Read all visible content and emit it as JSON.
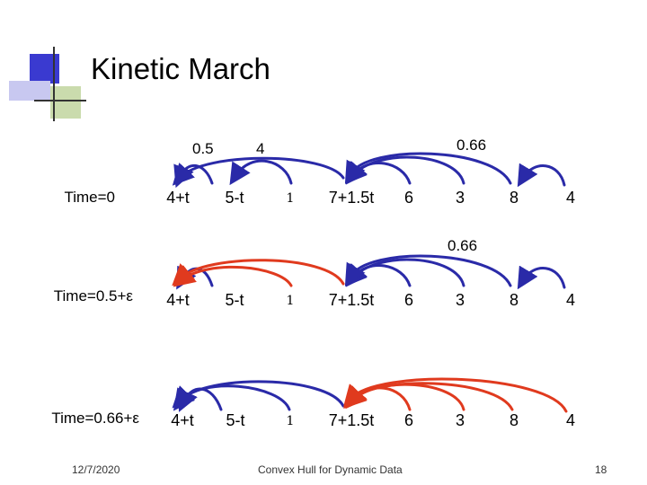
{
  "slide": {
    "title": "Kinetic March",
    "footer_date": "12/7/2020",
    "footer_center": "Convex Hull for Dynamic Data",
    "page_number": "18"
  },
  "annotations": {
    "row0_a": "0.5",
    "row0_b": "4",
    "row0_c": "0.66",
    "row1_a": "0.66"
  },
  "rows": [
    {
      "label": "Time=0",
      "nodes": [
        "4+t",
        "5-t",
        "1",
        "7+1.5t",
        "6",
        "3",
        "8",
        "4"
      ]
    },
    {
      "label": "Time=0.5+ε",
      "nodes": [
        "4+t",
        "5-t",
        "1",
        "7+1.5t",
        "6",
        "3",
        "8",
        "4"
      ]
    },
    {
      "label": "Time=0.66+ε",
      "nodes": [
        "4+t",
        "5-t",
        "1",
        "7+1.5t",
        "6",
        "3",
        "8",
        "4"
      ]
    }
  ],
  "colors": {
    "arc_blue": "#2a2aa8",
    "arc_red": "#e03a1e",
    "logo_blue": "#3a3ad0",
    "logo_lavender": "#c8c8f0",
    "logo_green": "#8ab04a"
  }
}
